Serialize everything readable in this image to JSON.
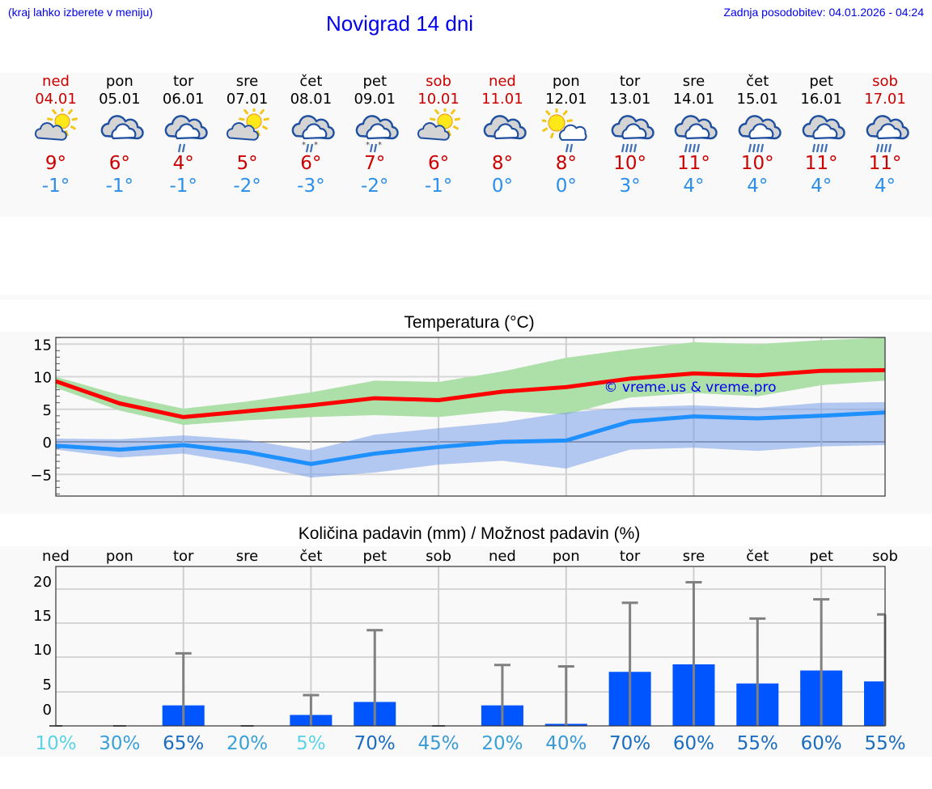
{
  "header": {
    "hint": "(kraj lahko izberete v meniju)",
    "title": "Novigrad 14 dni",
    "updated": "Zadnja posodobitev: 04.01.2026 - 04:24"
  },
  "colors": {
    "weekend": "#cc0000",
    "weekday": "#000000",
    "tmax": "#cc0000",
    "tmin": "#2b8fea",
    "max_line": "#ff0000",
    "min_line": "#1e90ff",
    "max_band": "#addfa8",
    "min_band": "#aec6f2",
    "overlap_band": "#7dc8a8",
    "bar": "#0055ff",
    "errbar": "#808080",
    "link": "#0000ee"
  },
  "days": [
    {
      "dow": "ned",
      "date": "04.01",
      "weekend": true,
      "icon": "partly-cloudy-sun-icon",
      "tmax": "9°",
      "tmin": "-1°"
    },
    {
      "dow": "pon",
      "date": "05.01",
      "weekend": false,
      "icon": "cloudy-icon",
      "tmax": "6°",
      "tmin": "-1°"
    },
    {
      "dow": "tor",
      "date": "06.01",
      "weekend": false,
      "icon": "cloudy-light-rain-icon",
      "tmax": "4°",
      "tmin": "-1°"
    },
    {
      "dow": "sre",
      "date": "07.01",
      "weekend": false,
      "icon": "partly-cloudy-sun-icon",
      "tmax": "5°",
      "tmin": "-2°"
    },
    {
      "dow": "čet",
      "date": "08.01",
      "weekend": false,
      "icon": "cloudy-sleet-icon",
      "tmax": "6°",
      "tmin": "-3°"
    },
    {
      "dow": "pet",
      "date": "09.01",
      "weekend": false,
      "icon": "cloudy-sleet-icon",
      "tmax": "7°",
      "tmin": "-2°"
    },
    {
      "dow": "sob",
      "date": "10.01",
      "weekend": true,
      "icon": "partly-cloudy-sun-icon",
      "tmax": "6°",
      "tmin": "-1°"
    },
    {
      "dow": "ned",
      "date": "11.01",
      "weekend": true,
      "icon": "cloudy-icon",
      "tmax": "8°",
      "tmin": "0°"
    },
    {
      "dow": "pon",
      "date": "12.01",
      "weekend": false,
      "icon": "sun-cloud-light-rain-icon",
      "tmax": "8°",
      "tmin": "0°"
    },
    {
      "dow": "tor",
      "date": "13.01",
      "weekend": false,
      "icon": "cloudy-rain-icon",
      "tmax": "10°",
      "tmin": "3°"
    },
    {
      "dow": "sre",
      "date": "14.01",
      "weekend": false,
      "icon": "cloudy-rain-icon",
      "tmax": "11°",
      "tmin": "4°"
    },
    {
      "dow": "čet",
      "date": "15.01",
      "weekend": false,
      "icon": "cloudy-rain-icon",
      "tmax": "10°",
      "tmin": "4°"
    },
    {
      "dow": "pet",
      "date": "16.01",
      "weekend": false,
      "icon": "cloudy-rain-icon",
      "tmax": "11°",
      "tmin": "4°"
    },
    {
      "dow": "sob",
      "date": "17.01",
      "weekend": true,
      "icon": "cloudy-rain-icon",
      "tmax": "11°",
      "tmin": "4°"
    }
  ],
  "chart_data": [
    {
      "type": "line",
      "title": "Temperatura (°C)",
      "xlabel": "",
      "ylabel": "",
      "ylim": [
        -8.3,
        16.0
      ],
      "yticks": [
        15,
        10,
        5,
        0,
        -5
      ],
      "grid": true,
      "watermark": "© vreme.us & vreme.pro",
      "x": [
        "04.01",
        "05.01",
        "06.01",
        "07.01",
        "08.01",
        "09.01",
        "10.01",
        "11.01",
        "12.01",
        "13.01",
        "14.01",
        "15.01",
        "16.01",
        "17.01"
      ],
      "series": [
        {
          "name": "max",
          "color": "#ff0000",
          "values": [
            9.3,
            5.9,
            3.8,
            4.7,
            5.6,
            6.7,
            6.4,
            7.7,
            8.4,
            9.7,
            10.5,
            10.2,
            10.9,
            11.0
          ]
        },
        {
          "name": "min",
          "color": "#1e90ff",
          "values": [
            -0.6,
            -1.2,
            -0.5,
            -1.6,
            -3.4,
            -1.8,
            -0.8,
            0.0,
            0.2,
            3.1,
            3.9,
            3.6,
            4.0,
            4.5
          ]
        }
      ],
      "bands": [
        {
          "name": "max range",
          "color": "#addfa8",
          "upper": [
            10.0,
            7.2,
            5.1,
            6.2,
            7.6,
            9.4,
            9.2,
            10.8,
            12.9,
            14.2,
            15.3,
            15.0,
            15.6,
            16.0
          ],
          "lower": [
            8.3,
            4.8,
            2.6,
            3.3,
            3.8,
            4.1,
            3.8,
            4.8,
            4.2,
            6.8,
            7.5,
            7.0,
            8.7,
            9.4
          ]
        },
        {
          "name": "min range",
          "color": "#aec6f2",
          "upper": [
            0.5,
            0.4,
            1.0,
            0.3,
            -1.3,
            1.1,
            2.1,
            3.0,
            4.5,
            5.3,
            5.6,
            5.2,
            6.0,
            6.1
          ],
          "lower": [
            -1.2,
            -2.4,
            -1.8,
            -3.4,
            -5.5,
            -4.7,
            -3.5,
            -2.9,
            -4.1,
            -1.2,
            -0.9,
            -1.4,
            -0.7,
            -0.5
          ]
        }
      ]
    },
    {
      "type": "bar",
      "title": "Količina padavin (mm) / Možnost padavin (%)",
      "xlabel": "",
      "ylabel": "",
      "ylim": [
        0,
        22
      ],
      "yticks": [
        20,
        15,
        10,
        5,
        0
      ],
      "grid": true,
      "categories": [
        "ned",
        "pon",
        "tor",
        "sre",
        "čet",
        "pet",
        "sob",
        "ned",
        "pon",
        "tor",
        "sre",
        "čet",
        "pet",
        "sob"
      ],
      "values": [
        0,
        0,
        3.0,
        0,
        1.6,
        3.5,
        0,
        3.0,
        0.3,
        7.9,
        9.0,
        6.2,
        8.1,
        6.5
      ],
      "error_max": [
        0,
        0,
        10.6,
        0,
        4.5,
        14.0,
        0,
        8.9,
        8.7,
        18.0,
        21.0,
        15.7,
        18.5,
        16.3
      ],
      "probability": [
        "10%",
        "30%",
        "65%",
        "20%",
        "5%",
        "70%",
        "45%",
        "20%",
        "40%",
        "70%",
        "60%",
        "55%",
        "60%",
        "55%"
      ],
      "probability_colors": [
        "#5ad3e6",
        "#3aa0d8",
        "#1a6cc0",
        "#3aa0d8",
        "#5ad3e6",
        "#1a6cc0",
        "#3a9ad4",
        "#3aa0d8",
        "#3a9ad4",
        "#1a6cc0",
        "#1a6cc0",
        "#1a6cc0",
        "#1a6cc0",
        "#1a6cc0"
      ]
    }
  ]
}
